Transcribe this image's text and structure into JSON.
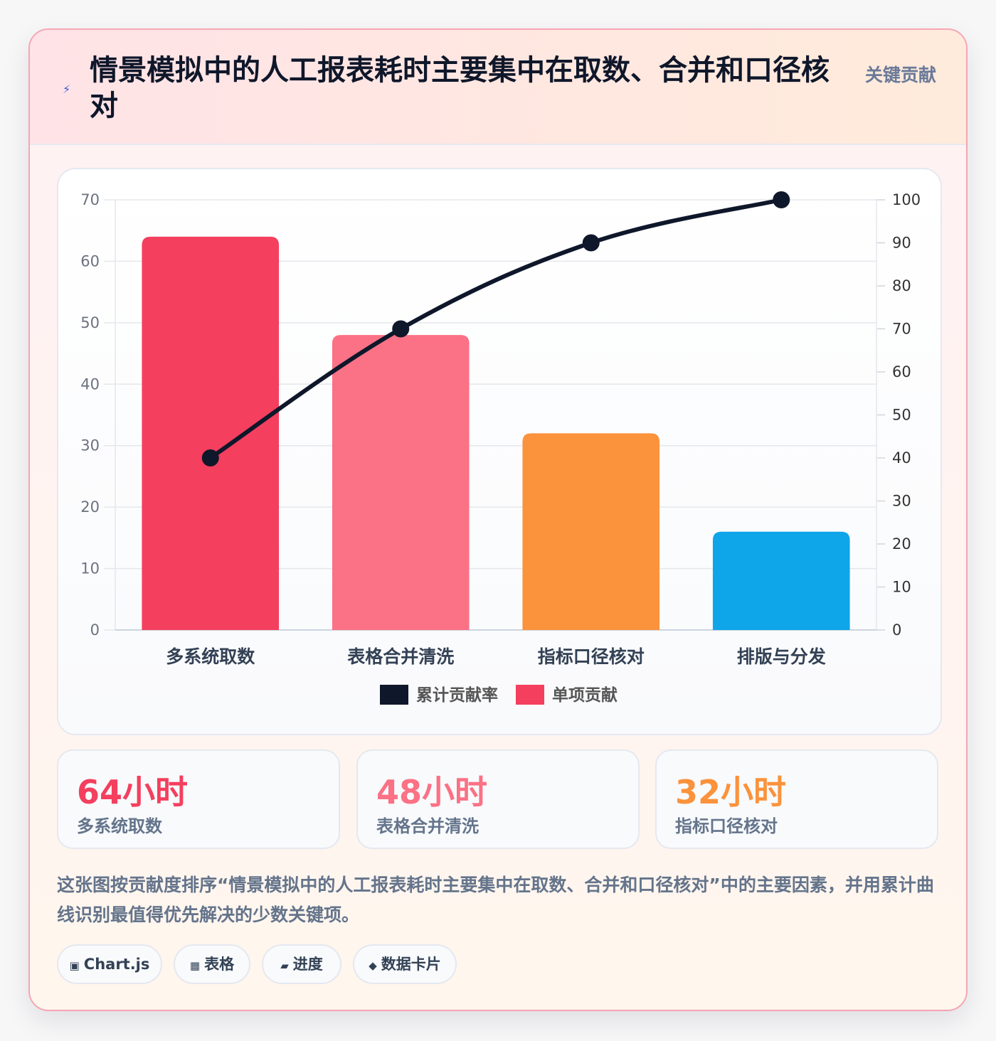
{
  "header": {
    "icon": "lightning-icon",
    "title": "情景模拟中的人工报表耗时主要集中在取数、合并和口径核对",
    "tag": "关键贡献"
  },
  "chart_data": {
    "type": "bar",
    "categories": [
      "多系统取数",
      "表格合并清洗",
      "指标口径核对",
      "排版与分发"
    ],
    "series": [
      {
        "name": "单项贡献",
        "type": "bar",
        "axis": "left",
        "values": [
          64,
          48,
          32,
          16
        ],
        "colors": [
          "#f43f5e",
          "#fb7185",
          "#fb923c",
          "#0ea5e9"
        ]
      },
      {
        "name": "累计贡献率",
        "type": "line",
        "axis": "right",
        "values": [
          40,
          70,
          90,
          100
        ],
        "color": "#0f172a"
      }
    ],
    "y_left": {
      "min": 0,
      "max": 70,
      "step": 10,
      "ticks": [
        "0",
        "10",
        "20",
        "30",
        "40",
        "50",
        "60",
        "70"
      ]
    },
    "y_right": {
      "min": 0,
      "max": 100,
      "step": 10,
      "ticks": [
        "0",
        "10",
        "20",
        "30",
        "40",
        "50",
        "60",
        "70",
        "80",
        "90",
        "100"
      ]
    },
    "grid": true,
    "legend": {
      "position": "bottom",
      "items": [
        {
          "label": "累计贡献率",
          "color": "#0f172a"
        },
        {
          "label": "单项贡献",
          "color": "#f43f5e"
        }
      ]
    }
  },
  "stats": [
    {
      "value": "64小时",
      "label": "多系统取数",
      "color": "#f43f5e"
    },
    {
      "value": "48小时",
      "label": "表格合并清洗",
      "color": "#fb7185"
    },
    {
      "value": "32小时",
      "label": "指标口径核对",
      "color": "#fb923c"
    }
  ],
  "description": "这张图按贡献度排序“情景模拟中的人工报表耗时主要集中在取数、合并和口径核对”中的主要因素，并用累计曲线识别最值得优先解决的少数关键项。",
  "chips": [
    {
      "icon": "▣",
      "icon_name": "chart-icon",
      "label": "Chart.js"
    },
    {
      "icon": "▦",
      "icon_name": "table-icon",
      "label": "表格"
    },
    {
      "icon": "▰",
      "icon_name": "progress-icon",
      "label": "进度"
    },
    {
      "icon": "◆",
      "icon_name": "data-card-icon",
      "label": "数据卡片"
    }
  ]
}
